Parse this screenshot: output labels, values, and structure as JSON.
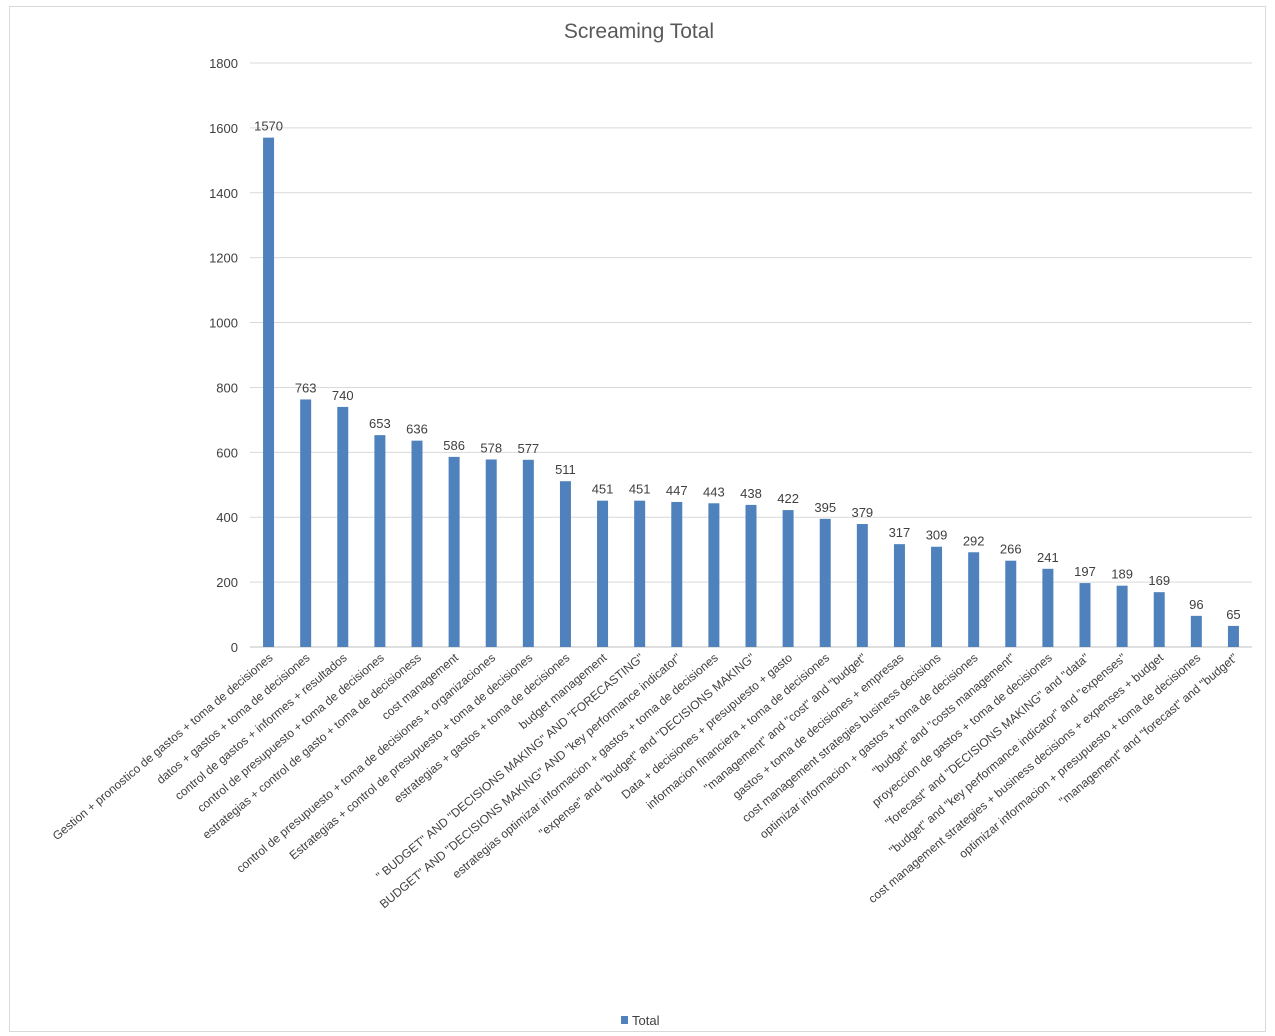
{
  "chart_data": {
    "type": "bar",
    "title": "Screaming Total",
    "xlabel": "",
    "ylabel": "",
    "ylim": [
      0,
      1800
    ],
    "yticks": [
      "0",
      "200",
      "400",
      "600",
      "800",
      "1000",
      "1200",
      "1400",
      "1600",
      "1800"
    ],
    "grid": true,
    "legend_position": "bottom",
    "bar_color": "#4f81bd",
    "categories": [
      "Gestion + pronostico de gastos + toma de decisiones",
      "datos + gastos + toma de decisiones",
      "control de gastos + informes + resultados",
      "control de presupuesto + toma de decisiones",
      "estrategias + control de gasto + toma de decisioness",
      "cost management",
      "control de presupuesto + toma de decisiones + organizaciones",
      "Estrategias + control de presupuesto + toma de decisiones",
      "estrategias + gastos + toma de decisiones",
      "budget management",
      "\" BUDGET\" AND \"DECISIONS MAKING\" AND \"FORECASTING\"",
      "BUDGET\" AND \"DECISIONS MAKING\" AND \"key performance indicator\"",
      "estrategias optimizar informacion + gastos + toma de decisiones",
      "\"expense\" and \"budget\" and \"DECISIONS MAKING\"",
      "Data + decisiones + presupuesto + gasto",
      "informacion financiera + toma de decisiones",
      "\"management\" and \"cost\" and \"budget\"",
      "gastos + toma de decisiones + empresas",
      "cost management strategies business decisions",
      "optimizar informacion + gastos + toma de decisiones",
      "\"budget\" and \"costs management\"",
      "proyeccion de gastos +  toma de decisiones",
      "\"forecast\" and \"DECISIONS MAKING\" and \"data\"",
      "\"budget\" and \"key performance indicator\" and \"expenses\"",
      "cost management strategies + business decisions + expenses + budget",
      "optimizar informacion + presupuesto + toma de decisiones",
      "\"management\" and \"forecast\" and \"budget\""
    ],
    "series": [
      {
        "name": "Total",
        "values": [
          1570,
          763,
          740,
          653,
          636,
          586,
          578,
          577,
          511,
          451,
          451,
          447,
          443,
          438,
          422,
          395,
          379,
          317,
          309,
          292,
          266,
          241,
          197,
          189,
          169,
          96,
          65
        ]
      }
    ]
  }
}
